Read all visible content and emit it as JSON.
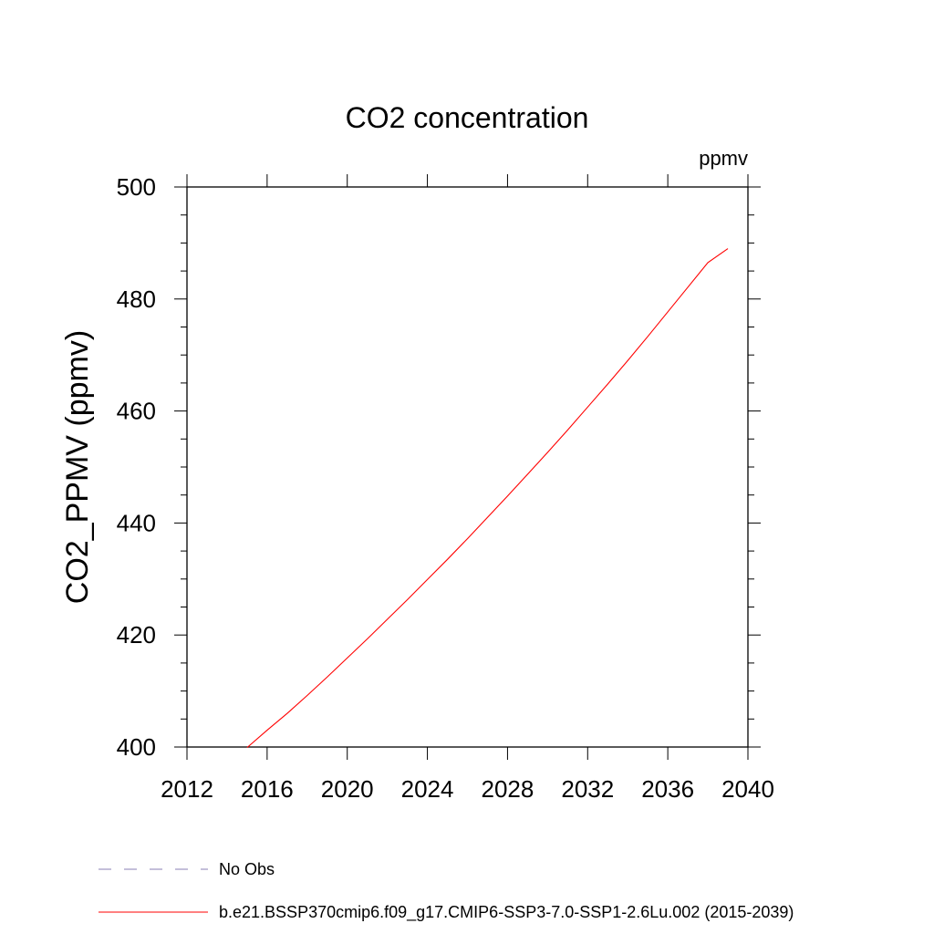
{
  "chart_data": {
    "type": "line",
    "title": "CO2 concentration",
    "units_label": "ppmv",
    "ylabel": "CO2_PPMV  (ppmv)",
    "xlabel": "",
    "xlim": [
      2012,
      2040
    ],
    "ylim": [
      400,
      500
    ],
    "x_ticks": [
      "2012",
      "2016",
      "2020",
      "2024",
      "2028",
      "2032",
      "2036",
      "2040"
    ],
    "y_ticks": [
      "400",
      "420",
      "440",
      "460",
      "480",
      "500"
    ],
    "grid": false,
    "legend_position": "bottom",
    "series": [
      {
        "name": "No Obs",
        "color": "#8a7fb5",
        "dash": "dashed",
        "x": [],
        "y": []
      },
      {
        "name": "b.e21.BSSP370cmip6.f09_g17.CMIP6-SSP3-7.0-SSP1-2.6Lu.002 (2015-2039)",
        "color": "#ff0000",
        "dash": "solid",
        "x": [
          2015,
          2016,
          2017,
          2018,
          2019,
          2020,
          2021,
          2022,
          2023,
          2024,
          2025,
          2026,
          2027,
          2028,
          2029,
          2030,
          2031,
          2032,
          2033,
          2034,
          2035,
          2036,
          2037,
          2038,
          2039
        ],
        "y": [
          399.9,
          403.0,
          406.0,
          409.2,
          412.5,
          415.9,
          419.3,
          422.8,
          426.3,
          429.9,
          433.5,
          437.2,
          441.0,
          444.8,
          448.7,
          452.6,
          456.6,
          460.7,
          464.8,
          469.0,
          473.3,
          477.7,
          482.1,
          486.5,
          489.0
        ]
      }
    ]
  }
}
